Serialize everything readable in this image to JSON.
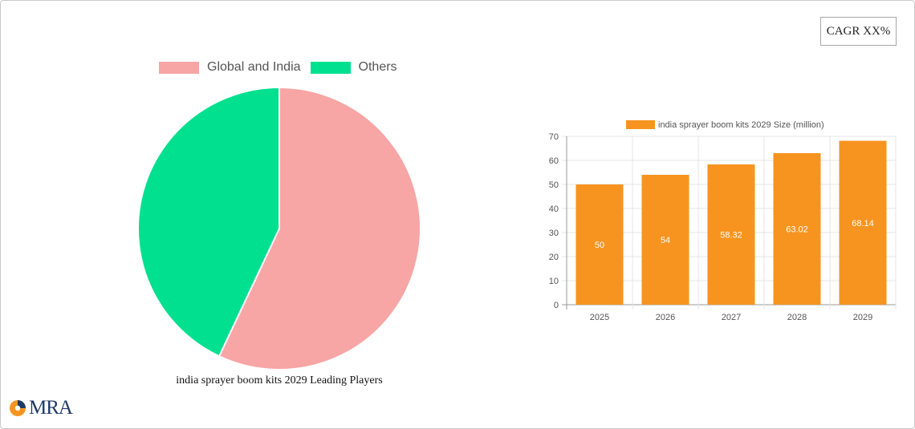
{
  "badge": {
    "label": "CAGR XX%"
  },
  "colors": {
    "share_primary": "#f8a5a5",
    "share_secondary": "#00e08f",
    "bar": "#f79420"
  },
  "logo": {
    "text": "MRA",
    "icon": "mra-logo-icon"
  },
  "chart_data": [
    {
      "type": "pie",
      "title": "india sprayer boom kits 2029 Leading Players",
      "legend_position": "top",
      "slices": [
        {
          "label": "Global and India",
          "value": 57,
          "color": "#f8a5a5"
        },
        {
          "label": "Others",
          "value": 43,
          "color": "#00e08f"
        }
      ]
    },
    {
      "type": "bar",
      "legend_position": "top",
      "series": [
        {
          "name": "india sprayer boom kits 2029 Size (million)",
          "color": "#f79420",
          "values": [
            50,
            54,
            58.32,
            63.02,
            68.14
          ]
        }
      ],
      "categories": [
        "2025",
        "2026",
        "2027",
        "2028",
        "2029"
      ],
      "data_labels": [
        "50",
        "54",
        "58.32",
        "63.02",
        "68.14"
      ],
      "ylim": [
        0,
        70
      ],
      "yticks": [
        "0",
        "10",
        "20",
        "30",
        "40",
        "50",
        "60",
        "70"
      ],
      "grid": true
    }
  ]
}
